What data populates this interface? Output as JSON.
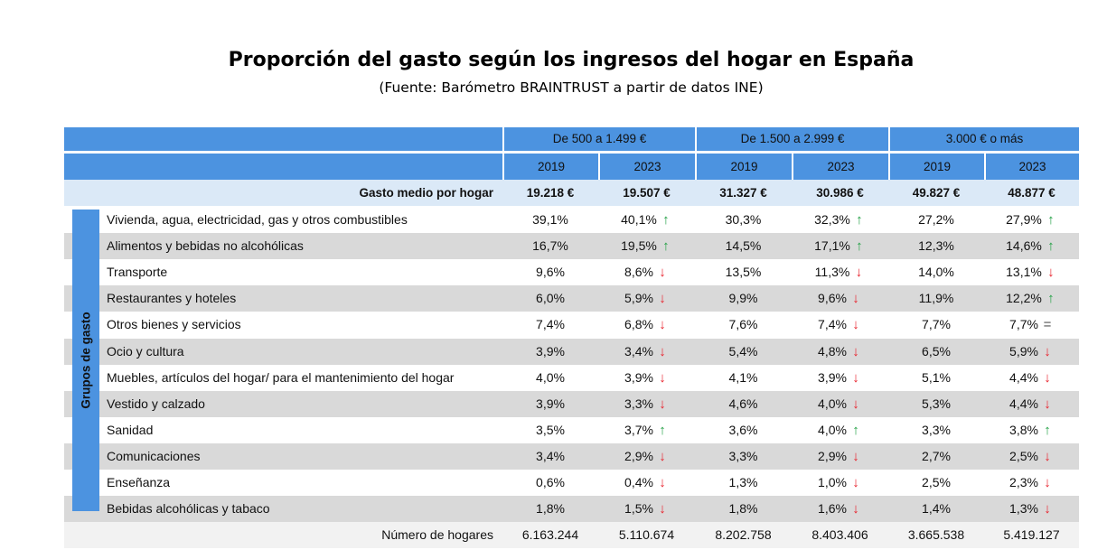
{
  "title": "Proporción del gasto según los ingresos del hogar en España",
  "subtitle": "(Fuente: Barómetro BRAINTRUST a partir de datos INE)",
  "income_groups": [
    "De 500 a 1.499 €",
    "De 1.500 a 2.999 €",
    "3.000 € o más"
  ],
  "years": [
    "2019",
    "2023",
    "2019",
    "2023",
    "2019",
    "2023"
  ],
  "mean_row": {
    "label": "Gasto medio por hogar",
    "values": [
      "19.218 €",
      "19.507 €",
      "31.327 €",
      "30.986 €",
      "49.827 €",
      "48.877 €"
    ]
  },
  "vertical_label": "Grupos de gasto",
  "arrow_icons": {
    "up": "arrow-up-icon",
    "down": "arrow-down-icon",
    "eq": "equal-icon"
  },
  "arrow_colors": {
    "up": "#22a044",
    "down": "#e8232d"
  },
  "rows": [
    {
      "label": "Vivienda, agua, electricidad, gas y otros combustibles",
      "values": [
        "39,1%",
        "40,1%",
        "30,3%",
        "32,3%",
        "27,2%",
        "27,9%"
      ],
      "trend": [
        "up",
        "up",
        "up"
      ]
    },
    {
      "label": "Alimentos y bebidas no alcohólicas",
      "values": [
        "16,7%",
        "19,5%",
        "14,5%",
        "17,1%",
        "12,3%",
        "14,6%"
      ],
      "trend": [
        "up",
        "up",
        "up"
      ]
    },
    {
      "label": "Transporte",
      "values": [
        "9,6%",
        "8,6%",
        "13,5%",
        "11,3%",
        "14,0%",
        "13,1%"
      ],
      "trend": [
        "down",
        "down",
        "down"
      ]
    },
    {
      "label": "Restaurantes y hoteles",
      "values": [
        "6,0%",
        "5,9%",
        "9,9%",
        "9,6%",
        "11,9%",
        "12,2%"
      ],
      "trend": [
        "down",
        "down",
        "up"
      ]
    },
    {
      "label": "Otros bienes y servicios",
      "values": [
        "7,4%",
        "6,8%",
        "7,6%",
        "7,4%",
        "7,7%",
        "7,7%"
      ],
      "trend": [
        "down",
        "down",
        "eq"
      ]
    },
    {
      "label": "Ocio y cultura",
      "values": [
        "3,9%",
        "3,4%",
        "5,4%",
        "4,8%",
        "6,5%",
        "5,9%"
      ],
      "trend": [
        "down",
        "down",
        "down"
      ]
    },
    {
      "label": "Muebles, artículos del hogar/ para el mantenimiento del hogar",
      "values": [
        "4,0%",
        "3,9%",
        "4,1%",
        "3,9%",
        "5,1%",
        "4,4%"
      ],
      "trend": [
        "down",
        "down",
        "down"
      ]
    },
    {
      "label": "Vestido y calzado",
      "values": [
        "3,9%",
        "3,3%",
        "4,6%",
        "4,0%",
        "5,3%",
        "4,4%"
      ],
      "trend": [
        "down",
        "down",
        "down"
      ]
    },
    {
      "label": "Sanidad",
      "values": [
        "3,5%",
        "3,7%",
        "3,6%",
        "4,0%",
        "3,3%",
        "3,8%"
      ],
      "trend": [
        "up",
        "up",
        "up"
      ]
    },
    {
      "label": "Comunicaciones",
      "values": [
        "3,4%",
        "2,9%",
        "3,3%",
        "2,9%",
        "2,7%",
        "2,5%"
      ],
      "trend": [
        "down",
        "down",
        "down"
      ]
    },
    {
      "label": "Enseñanza",
      "values": [
        "0,6%",
        "0,4%",
        "1,3%",
        "1,0%",
        "2,5%",
        "2,3%"
      ],
      "trend": [
        "down",
        "down",
        "down"
      ]
    },
    {
      "label": "Bebidas alcohólicas y tabaco",
      "values": [
        "1,8%",
        "1,5%",
        "1,8%",
        "1,6%",
        "1,4%",
        "1,3%"
      ],
      "trend": [
        "down",
        "down",
        "down"
      ]
    }
  ],
  "households_row": {
    "label": "Número de hogares",
    "values": [
      "6.163.244",
      "5.110.674",
      "8.202.758",
      "8.403.406",
      "3.665.538",
      "5.419.127"
    ]
  }
}
